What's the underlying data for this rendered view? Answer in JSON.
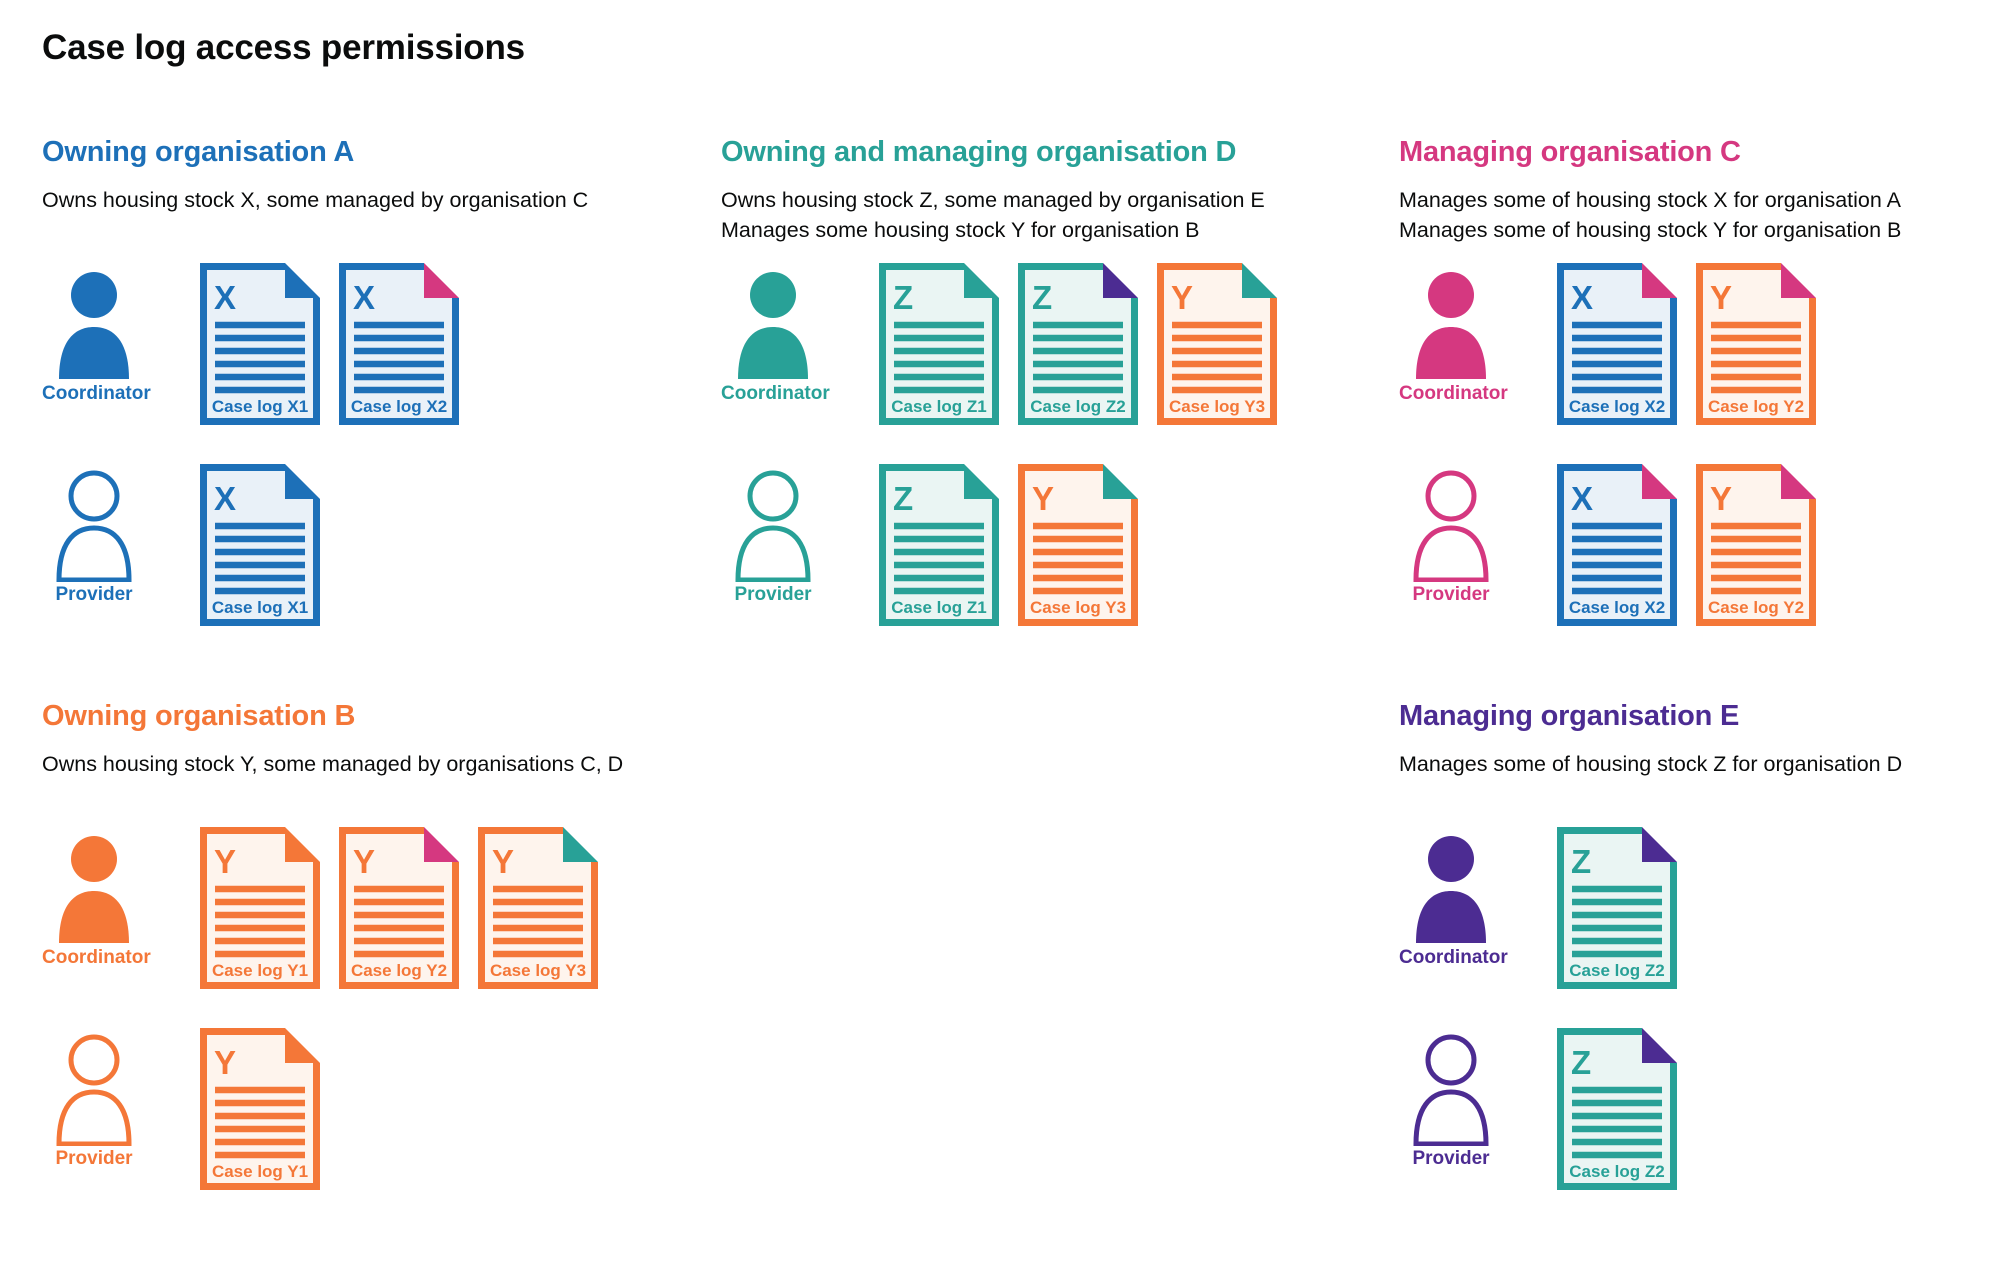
{
  "page_title": "Case log access permissions",
  "colors": {
    "blue": "#1d70b8",
    "teal": "#28a197",
    "pink": "#d53880",
    "orange": "#f47738",
    "purple": "#4c2c92",
    "text": "#0b0c0c"
  },
  "doc_fills": {
    "blue": "#e9f1f8",
    "teal": "#eaf5f3",
    "orange": "#fef4ed"
  },
  "sections": [
    {
      "key": "owning-organisation-a",
      "slot": "a",
      "color": "blue",
      "title": "Owning organisation A",
      "description": [
        "Owns housing stock X, some managed by organisation C"
      ],
      "rows": [
        {
          "role": "Coordinator",
          "person_style": "filled",
          "docs": [
            {
              "label": "Case log X1",
              "letter": "X",
              "doc_color": "blue",
              "corner_color": "blue"
            },
            {
              "label": "Case log X2",
              "letter": "X",
              "doc_color": "blue",
              "corner_color": "pink"
            }
          ]
        },
        {
          "role": "Provider",
          "person_style": "outline",
          "docs": [
            {
              "label": "Case log X1",
              "letter": "X",
              "doc_color": "blue",
              "corner_color": "blue"
            }
          ]
        }
      ]
    },
    {
      "key": "owning-and-managing-organisation-d",
      "slot": "d",
      "color": "teal",
      "title": "Owning and managing organisation D",
      "description": [
        "Owns housing stock Z, some managed by organisation E",
        "Manages some housing stock Y for organisation B"
      ],
      "rows": [
        {
          "role": "Coordinator",
          "person_style": "filled",
          "docs": [
            {
              "label": "Case log Z1",
              "letter": "Z",
              "doc_color": "teal",
              "corner_color": "teal"
            },
            {
              "label": "Case log Z2",
              "letter": "Z",
              "doc_color": "teal",
              "corner_color": "purple"
            },
            {
              "label": "Case log Y3",
              "letter": "Y",
              "doc_color": "orange",
              "corner_color": "teal"
            }
          ]
        },
        {
          "role": "Provider",
          "person_style": "outline",
          "docs": [
            {
              "label": "Case log Z1",
              "letter": "Z",
              "doc_color": "teal",
              "corner_color": "teal"
            },
            {
              "label": "Case log Y3",
              "letter": "Y",
              "doc_color": "orange",
              "corner_color": "teal"
            }
          ]
        }
      ]
    },
    {
      "key": "managing-organisation-c",
      "slot": "c",
      "color": "pink",
      "title": "Managing organisation C",
      "description": [
        "Manages some of housing stock X for organisation A",
        "Manages some of housing stock Y for organisation B"
      ],
      "rows": [
        {
          "role": "Coordinator",
          "person_style": "filled",
          "docs": [
            {
              "label": "Case log X2",
              "letter": "X",
              "doc_color": "blue",
              "corner_color": "pink"
            },
            {
              "label": "Case log Y2",
              "letter": "Y",
              "doc_color": "orange",
              "corner_color": "pink"
            }
          ]
        },
        {
          "role": "Provider",
          "person_style": "outline",
          "docs": [
            {
              "label": "Case log X2",
              "letter": "X",
              "doc_color": "blue",
              "corner_color": "pink"
            },
            {
              "label": "Case log Y2",
              "letter": "Y",
              "doc_color": "orange",
              "corner_color": "pink"
            }
          ]
        }
      ]
    },
    {
      "key": "owning-organisation-b",
      "slot": "b",
      "color": "orange",
      "title": "Owning organisation B",
      "description": [
        "Owns housing stock Y, some managed by organisations C, D"
      ],
      "rows": [
        {
          "role": "Coordinator",
          "person_style": "filled",
          "docs": [
            {
              "label": "Case log Y1",
              "letter": "Y",
              "doc_color": "orange",
              "corner_color": "orange"
            },
            {
              "label": "Case log Y2",
              "letter": "Y",
              "doc_color": "orange",
              "corner_color": "pink"
            },
            {
              "label": "Case log Y3",
              "letter": "Y",
              "doc_color": "orange",
              "corner_color": "teal"
            }
          ]
        },
        {
          "role": "Provider",
          "person_style": "outline",
          "docs": [
            {
              "label": "Case log Y1",
              "letter": "Y",
              "doc_color": "orange",
              "corner_color": "orange"
            }
          ]
        }
      ]
    },
    {
      "key": "managing-organisation-e",
      "slot": "e",
      "color": "purple",
      "title": "Managing organisation E",
      "description": [
        "Manages some of housing stock Z for organisation D"
      ],
      "rows": [
        {
          "role": "Coordinator",
          "person_style": "filled",
          "docs": [
            {
              "label": "Case log Z2",
              "letter": "Z",
              "doc_color": "teal",
              "corner_color": "purple"
            }
          ]
        },
        {
          "role": "Provider",
          "person_style": "outline",
          "docs": [
            {
              "label": "Case log Z2",
              "letter": "Z",
              "doc_color": "teal",
              "corner_color": "purple"
            }
          ]
        }
      ]
    }
  ]
}
